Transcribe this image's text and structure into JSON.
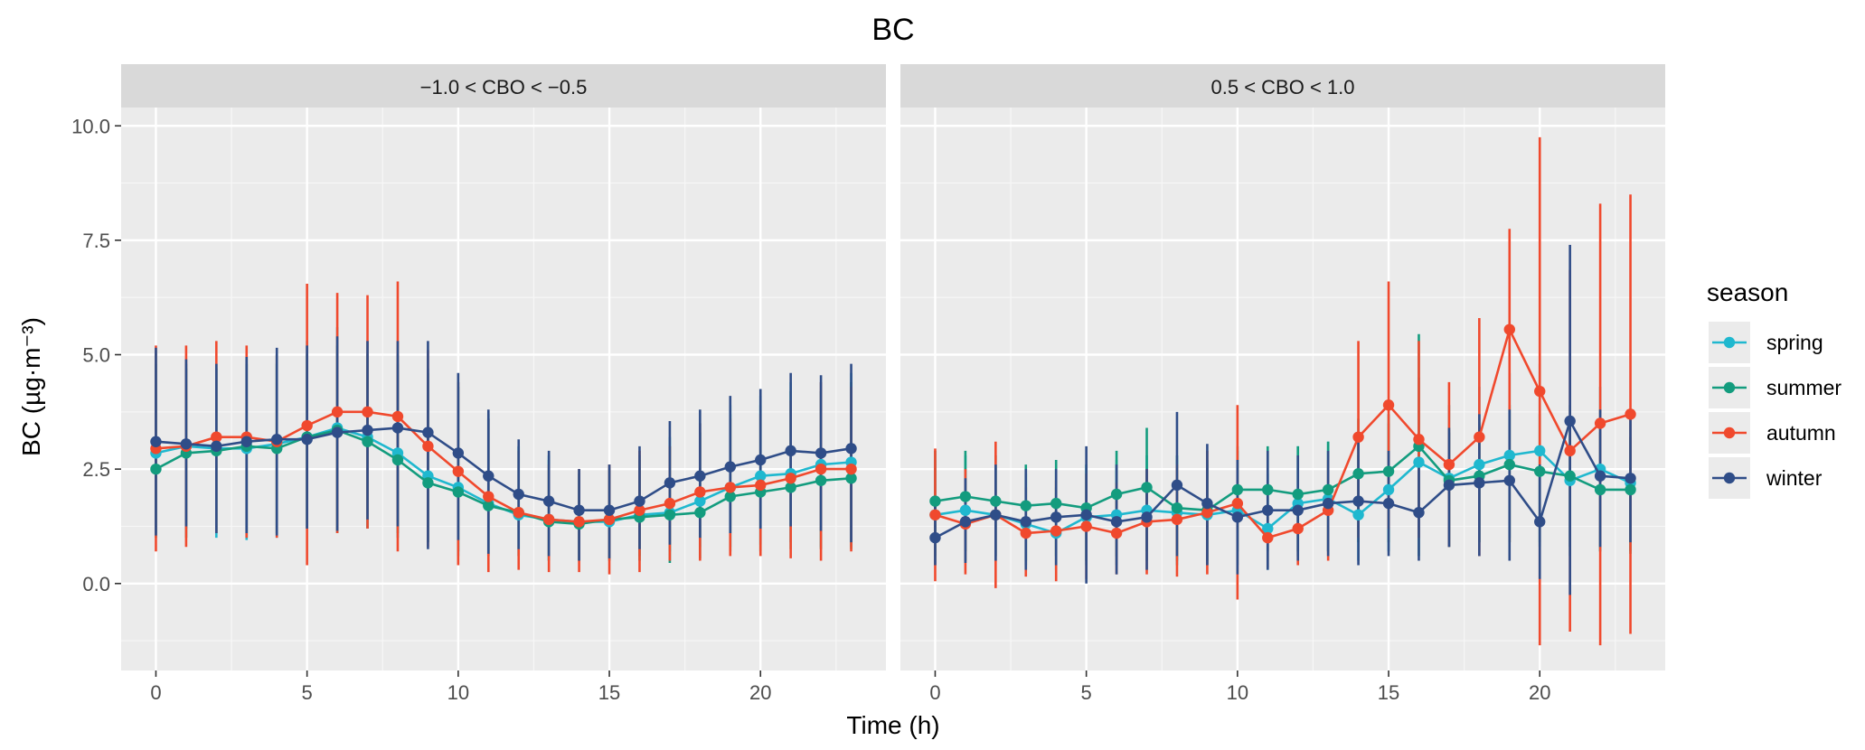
{
  "chart_data": {
    "type": "line",
    "title": "BC",
    "xlabel": "Time (h)",
    "ylabel": "BC (µg·m⁻³)",
    "x_ticks": [
      0,
      5,
      10,
      15,
      20
    ],
    "y_ticks": [
      "0.0",
      "2.5",
      "5.0",
      "7.5",
      "10.0"
    ],
    "xlim": [
      -1.15,
      24.15
    ],
    "ylim": [
      -1.9,
      10.4
    ],
    "legend": {
      "title": "season",
      "position": "right",
      "entries": [
        "spring",
        "summer",
        "autumn",
        "winter"
      ]
    },
    "colors": {
      "spring": "#1fb8cf",
      "summer": "#139c7e",
      "autumn": "#f0492d",
      "winter": "#2f4d88"
    },
    "x": [
      0,
      1,
      2,
      3,
      4,
      5,
      6,
      7,
      8,
      9,
      10,
      11,
      12,
      13,
      14,
      15,
      16,
      17,
      18,
      19,
      20,
      21,
      22,
      23
    ],
    "panels": [
      {
        "label": "−1.0 < CBO < −0.5",
        "series": [
          {
            "name": "spring",
            "mean": [
              2.85,
              3.0,
              2.95,
              2.95,
              3.05,
              3.2,
              3.4,
              3.2,
              2.85,
              2.35,
              2.1,
              1.75,
              1.5,
              1.4,
              1.35,
              1.35,
              1.5,
              1.55,
              1.8,
              2.1,
              2.35,
              2.4,
              2.6,
              2.65
            ],
            "low": [
              1.1,
              1.2,
              1.0,
              0.95,
              1.0,
              1.2,
              1.15,
              1.2,
              1.0,
              0.9,
              0.6,
              0.6,
              0.6,
              0.5,
              0.5,
              0.55,
              0.6,
              0.7,
              0.8,
              0.8,
              0.85,
              0.9,
              0.8,
              0.8
            ],
            "high": [
              5.1,
              4.8,
              4.8,
              4.9,
              5.0,
              5.3,
              5.6,
              5.3,
              5.0,
              4.7,
              4.4,
              3.7,
              3.0,
              2.8,
              2.5,
              2.6,
              2.8,
              3.2,
              3.5,
              3.9,
              4.1,
              4.4,
              4.4,
              4.6
            ]
          },
          {
            "name": "summer",
            "mean": [
              2.5,
              2.85,
              2.9,
              3.0,
              2.95,
              3.2,
              3.35,
              3.1,
              2.7,
              2.2,
              2.0,
              1.7,
              1.55,
              1.35,
              1.3,
              1.4,
              1.45,
              1.5,
              1.55,
              1.9,
              2.0,
              2.1,
              2.25,
              2.3
            ],
            "low": [
              1.0,
              1.0,
              1.1,
              1.0,
              1.1,
              1.2,
              1.1,
              1.2,
              1.1,
              0.9,
              0.7,
              0.6,
              0.6,
              0.5,
              0.5,
              0.5,
              0.5,
              0.45,
              0.55,
              0.7,
              0.7,
              0.75,
              0.75,
              0.75
            ],
            "high": [
              4.8,
              4.7,
              4.7,
              4.8,
              4.8,
              5.0,
              5.2,
              5.0,
              4.8,
              4.6,
              4.3,
              3.6,
              3.0,
              2.7,
              2.4,
              2.5,
              2.7,
              3.0,
              3.3,
              3.7,
              3.9,
              4.2,
              4.2,
              4.4
            ]
          },
          {
            "name": "autumn",
            "mean": [
              2.95,
              3.0,
              3.2,
              3.2,
              3.1,
              3.45,
              3.75,
              3.75,
              3.65,
              3.0,
              2.45,
              1.9,
              1.55,
              1.4,
              1.35,
              1.4,
              1.6,
              1.75,
              2.0,
              2.1,
              2.15,
              2.3,
              2.5,
              2.5
            ],
            "low": [
              0.7,
              0.8,
              1.1,
              1.0,
              1.0,
              0.4,
              1.1,
              1.2,
              0.7,
              0.8,
              0.4,
              0.25,
              0.3,
              0.25,
              0.25,
              0.2,
              0.25,
              0.5,
              0.5,
              0.6,
              0.6,
              0.55,
              0.5,
              0.7
            ],
            "high": [
              5.2,
              5.2,
              5.3,
              5.2,
              5.0,
              6.55,
              6.35,
              6.3,
              6.6,
              5.1,
              4.4,
              3.6,
              2.9,
              2.6,
              2.5,
              2.6,
              2.9,
              3.0,
              3.5,
              3.6,
              3.7,
              4.0,
              4.4,
              4.3
            ]
          },
          {
            "name": "winter",
            "mean": [
              3.1,
              3.05,
              3.0,
              3.1,
              3.15,
              3.15,
              3.3,
              3.35,
              3.4,
              3.3,
              2.85,
              2.35,
              1.95,
              1.8,
              1.6,
              1.6,
              1.8,
              2.2,
              2.35,
              2.55,
              2.7,
              2.9,
              2.85,
              2.95
            ],
            "low": [
              1.05,
              1.25,
              1.1,
              1.1,
              1.05,
              1.2,
              1.15,
              1.4,
              1.25,
              0.75,
              0.95,
              0.65,
              0.75,
              0.6,
              0.5,
              0.55,
              0.75,
              0.85,
              1.0,
              1.1,
              1.2,
              1.25,
              1.15,
              0.9
            ],
            "high": [
              5.15,
              4.9,
              4.8,
              4.95,
              5.15,
              5.2,
              5.4,
              5.3,
              5.3,
              5.3,
              4.6,
              3.8,
              3.15,
              2.9,
              2.5,
              2.6,
              3.0,
              3.55,
              3.8,
              4.1,
              4.25,
              4.6,
              4.55,
              4.8
            ]
          }
        ]
      },
      {
        "label": "0.5 < CBO < 1.0",
        "series": [
          {
            "name": "spring",
            "mean": [
              1.5,
              1.6,
              1.5,
              1.3,
              1.1,
              1.45,
              1.5,
              1.6,
              1.55,
              1.5,
              1.6,
              1.2,
              1.75,
              1.85,
              1.5,
              2.05,
              2.65,
              2.3,
              2.6,
              2.8,
              2.9,
              2.25,
              2.5,
              2.2
            ],
            "low": [
              0.4,
              0.5,
              0.5,
              0.4,
              0.3,
              0.4,
              0.4,
              0.5,
              0.4,
              0.4,
              0.4,
              0.3,
              0.6,
              0.7,
              0.5,
              0.7,
              1.0,
              0.8,
              0.9,
              1.0,
              0.9,
              0.6,
              0.7,
              0.7
            ],
            "high": [
              2.7,
              2.8,
              2.6,
              2.4,
              2.1,
              2.6,
              2.7,
              2.8,
              2.7,
              2.6,
              2.9,
              2.4,
              3.0,
              3.1,
              2.8,
              3.5,
              4.5,
              3.9,
              4.3,
              4.6,
              4.8,
              3.9,
              4.3,
              3.6
            ]
          },
          {
            "name": "summer",
            "mean": [
              1.8,
              1.9,
              1.8,
              1.7,
              1.75,
              1.65,
              1.95,
              2.1,
              1.65,
              1.6,
              2.05,
              2.05,
              1.95,
              2.05,
              2.4,
              2.45,
              3.0,
              2.25,
              2.35,
              2.6,
              2.45,
              2.35,
              2.05,
              2.05
            ],
            "low": [
              0.6,
              0.7,
              0.6,
              0.5,
              0.6,
              0.5,
              0.6,
              0.7,
              0.5,
              0.5,
              0.7,
              0.7,
              0.7,
              0.7,
              0.9,
              0.9,
              0.6,
              0.8,
              0.9,
              0.9,
              0.8,
              0.8,
              0.7,
              0.65
            ],
            "high": [
              2.9,
              2.9,
              2.8,
              2.6,
              2.7,
              2.6,
              2.9,
              3.4,
              2.8,
              2.7,
              3.0,
              3.0,
              3.0,
              3.1,
              3.6,
              3.7,
              5.45,
              3.3,
              3.5,
              3.9,
              3.7,
              3.6,
              3.3,
              3.2
            ]
          },
          {
            "name": "autumn",
            "mean": [
              1.5,
              1.3,
              1.5,
              1.1,
              1.15,
              1.25,
              1.1,
              1.35,
              1.4,
              1.55,
              1.75,
              1.0,
              1.2,
              1.6,
              3.2,
              3.9,
              3.15,
              2.6,
              3.2,
              5.55,
              4.2,
              2.9,
              3.5,
              3.7
            ],
            "low": [
              0.05,
              0.2,
              -0.1,
              0.15,
              0.05,
              0.1,
              0.2,
              0.2,
              0.15,
              0.2,
              -0.35,
              0.35,
              0.4,
              0.5,
              1.0,
              1.2,
              1.0,
              0.8,
              0.6,
              0.9,
              -1.35,
              -1.05,
              -1.35,
              -1.1
            ],
            "high": [
              2.95,
              2.5,
              3.1,
              2.1,
              2.25,
              2.4,
              2.2,
              2.5,
              2.6,
              2.9,
              3.9,
              1.7,
              2.0,
              2.7,
              5.3,
              6.6,
              5.3,
              4.4,
              5.8,
              7.75,
              9.75,
              6.85,
              8.3,
              8.5
            ]
          },
          {
            "name": "winter",
            "mean": [
              1.0,
              1.35,
              1.5,
              1.35,
              1.45,
              1.5,
              1.35,
              1.45,
              2.15,
              1.75,
              1.45,
              1.6,
              1.6,
              1.75,
              1.8,
              1.75,
              1.55,
              2.15,
              2.2,
              2.25,
              1.35,
              3.55,
              2.35,
              2.3
            ],
            "low": [
              0.4,
              0.45,
              0.5,
              0.3,
              0.4,
              0.0,
              0.2,
              0.3,
              0.6,
              0.4,
              0.2,
              0.3,
              0.5,
              0.6,
              0.4,
              0.6,
              0.5,
              0.8,
              0.6,
              0.5,
              0.1,
              -0.25,
              0.8,
              0.9
            ],
            "high": [
              1.8,
              2.3,
              2.6,
              2.5,
              2.5,
              3.0,
              2.6,
              2.5,
              3.75,
              3.05,
              2.7,
              2.9,
              2.8,
              2.9,
              3.2,
              2.9,
              2.6,
              3.4,
              3.7,
              3.8,
              2.6,
              7.4,
              3.8,
              3.7
            ]
          }
        ]
      }
    ]
  }
}
